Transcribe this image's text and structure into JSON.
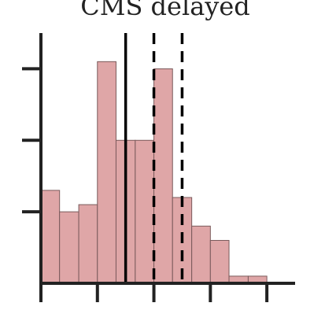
{
  "chart_data": {
    "type": "bar",
    "title": "CMS delayed",
    "xlabel": "",
    "ylabel": "",
    "bins": [
      {
        "x0": 0.0,
        "x1": 0.33,
        "value": 1.3
      },
      {
        "x0": 0.33,
        "x1": 0.67,
        "value": 1.0
      },
      {
        "x0": 0.67,
        "x1": 1.0,
        "value": 1.1
      },
      {
        "x0": 1.0,
        "x1": 1.33,
        "value": 3.1
      },
      {
        "x0": 1.33,
        "x1": 1.67,
        "value": 2.0
      },
      {
        "x0": 1.67,
        "x1": 2.0,
        "value": 2.0
      },
      {
        "x0": 2.0,
        "x1": 2.33,
        "value": 3.0
      },
      {
        "x0": 2.33,
        "x1": 2.67,
        "value": 1.2
      },
      {
        "x0": 2.67,
        "x1": 3.0,
        "value": 0.8
      },
      {
        "x0": 3.0,
        "x1": 3.33,
        "value": 0.6
      },
      {
        "x0": 3.33,
        "x1": 3.67,
        "value": 0.1
      },
      {
        "x0": 3.67,
        "x1": 4.0,
        "value": 0.1
      }
    ],
    "vertical_lines": [
      {
        "x": 1.5,
        "style": "solid"
      },
      {
        "x": 2.0,
        "style": "dashed"
      },
      {
        "x": 2.5,
        "style": "dashed"
      }
    ],
    "xlim": [
      0,
      4.5
    ],
    "ylim": [
      0,
      3.5
    ],
    "x_ticks": [
      0,
      1,
      2,
      3,
      4
    ],
    "y_ticks": [
      1,
      2,
      3
    ],
    "tick_labels_shown": false,
    "grid": false,
    "colors": {
      "bar_fill": "#dfa6a7",
      "bar_edge": "#7a5a5b",
      "axis": "#222222",
      "line": "#000000"
    }
  }
}
